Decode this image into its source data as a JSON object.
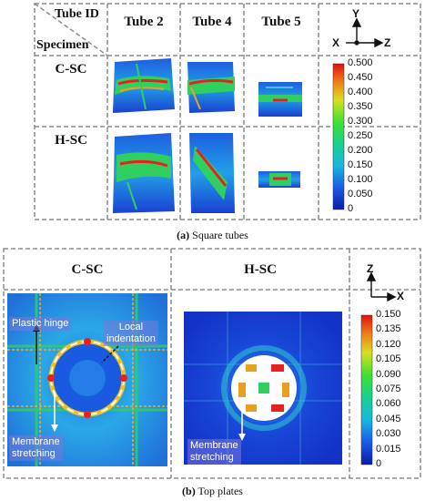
{
  "panel_a": {
    "corner_top": "Tube ID",
    "corner_bottom": "Specimen",
    "columns": [
      "Tube 2",
      "Tube 4",
      "Tube 5"
    ],
    "rows": [
      "C-SC",
      "H-SC"
    ],
    "axes": {
      "up": "Y",
      "left": "X",
      "right": "Z"
    },
    "colorbar_ticks": [
      "0.500",
      "0.450",
      "0.400",
      "0.350",
      "0.300",
      "0.250",
      "0.200",
      "0.150",
      "0.100",
      "0.050",
      "0"
    ],
    "caption_label": "(a)",
    "caption_text": " Square tubes"
  },
  "panel_b": {
    "columns": [
      "C-SC",
      "H-SC"
    ],
    "axes": {
      "up": "Z",
      "right": "X"
    },
    "colorbar_ticks": [
      "0.150",
      "0.135",
      "0.120",
      "0.105",
      "0.090",
      "0.075",
      "0.060",
      "0.045",
      "0.030",
      "0.015",
      "0"
    ],
    "annotations": {
      "plastic_hinge": "Plastic hinge",
      "local_indentation_1": "Local",
      "local_indentation_2": "indentation",
      "membrane_left_1": "Membrane",
      "membrane_left_2": "stretching",
      "membrane_right_1": "Membrane",
      "membrane_right_2": "stretching"
    },
    "caption_label": "(b)",
    "caption_text": " Top plates"
  },
  "colors": {
    "border": "#8c8c8c",
    "contour_low": "#1a2fd6",
    "contour_mid": "#22c840",
    "contour_high": "#e8221a"
  }
}
